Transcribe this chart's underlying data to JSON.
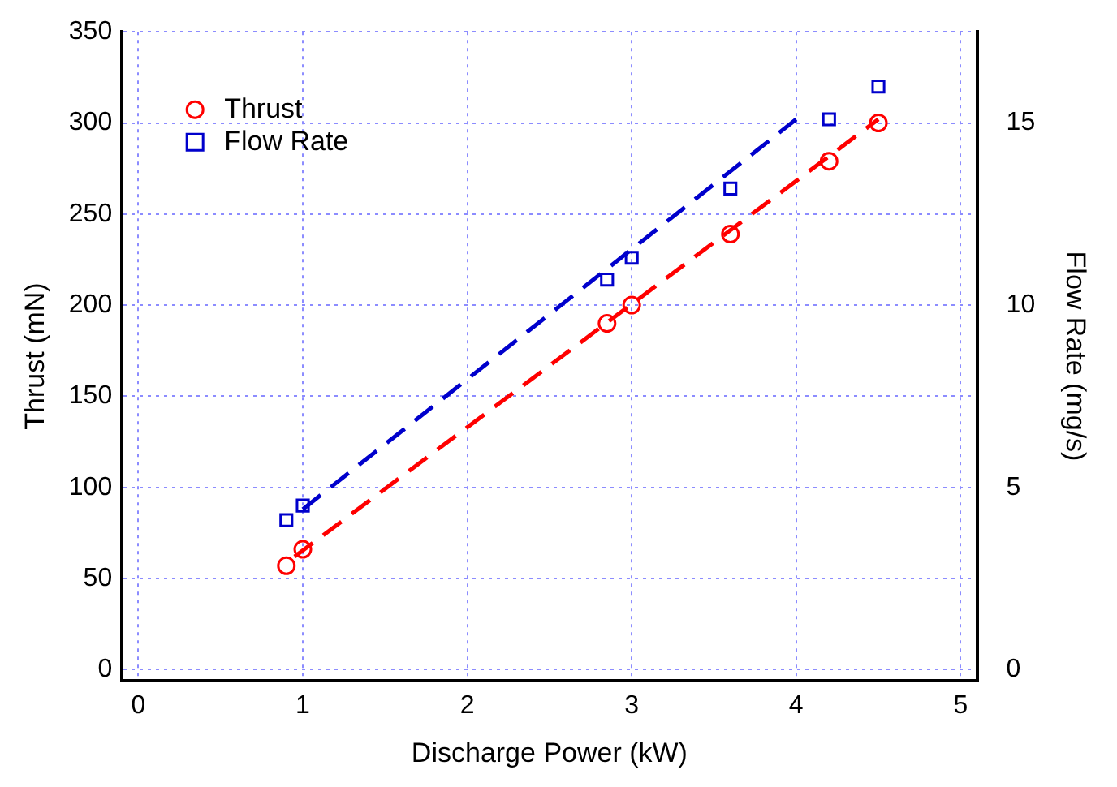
{
  "chart_data": {
    "type": "scatter",
    "xlabel": "Discharge Power (kW)",
    "ylabel": "Thrust (mN)",
    "y2label": "Flow Rate (mg/s)",
    "xlim": [
      -0.1,
      5.1
    ],
    "xticks": [
      0,
      1,
      2,
      3,
      4,
      5
    ],
    "ylim": [
      -6,
      350
    ],
    "yticks": [
      0,
      50,
      100,
      150,
      200,
      250,
      300,
      350
    ],
    "y2lim": [
      -0.3,
      17.5
    ],
    "y2ticks": [
      0,
      5,
      10,
      15
    ],
    "grid": true,
    "legend": "top left",
    "series": [
      {
        "name": "Thrust",
        "type": "scatter",
        "marker": "circle",
        "color": "#ff0000",
        "x": [
          0.9,
          1.0,
          2.85,
          3.0,
          3.6,
          4.2,
          4.5
        ],
        "values": [
          57,
          66,
          190,
          200,
          239,
          279,
          300
        ]
      },
      {
        "name": "Flow Rate",
        "type": "scatter",
        "marker": "square",
        "axis": "y2",
        "color": "#0000cc",
        "x": [
          0.9,
          1.0,
          2.85,
          3.0,
          3.6,
          4.2,
          4.5
        ],
        "values": [
          4.1,
          4.5,
          10.7,
          11.3,
          13.2,
          15.1,
          16.0
        ]
      },
      {
        "type": "line",
        "line_style": "dashed",
        "color": "#ff0000",
        "x": [
          0.95,
          4.5
        ],
        "values": [
          62,
          302
        ]
      },
      {
        "type": "line",
        "line_style": "dashed",
        "axis": "y2",
        "color": "#0000cc",
        "x": [
          1.0,
          4.0
        ],
        "values": [
          4.4,
          15.1
        ]
      }
    ]
  }
}
